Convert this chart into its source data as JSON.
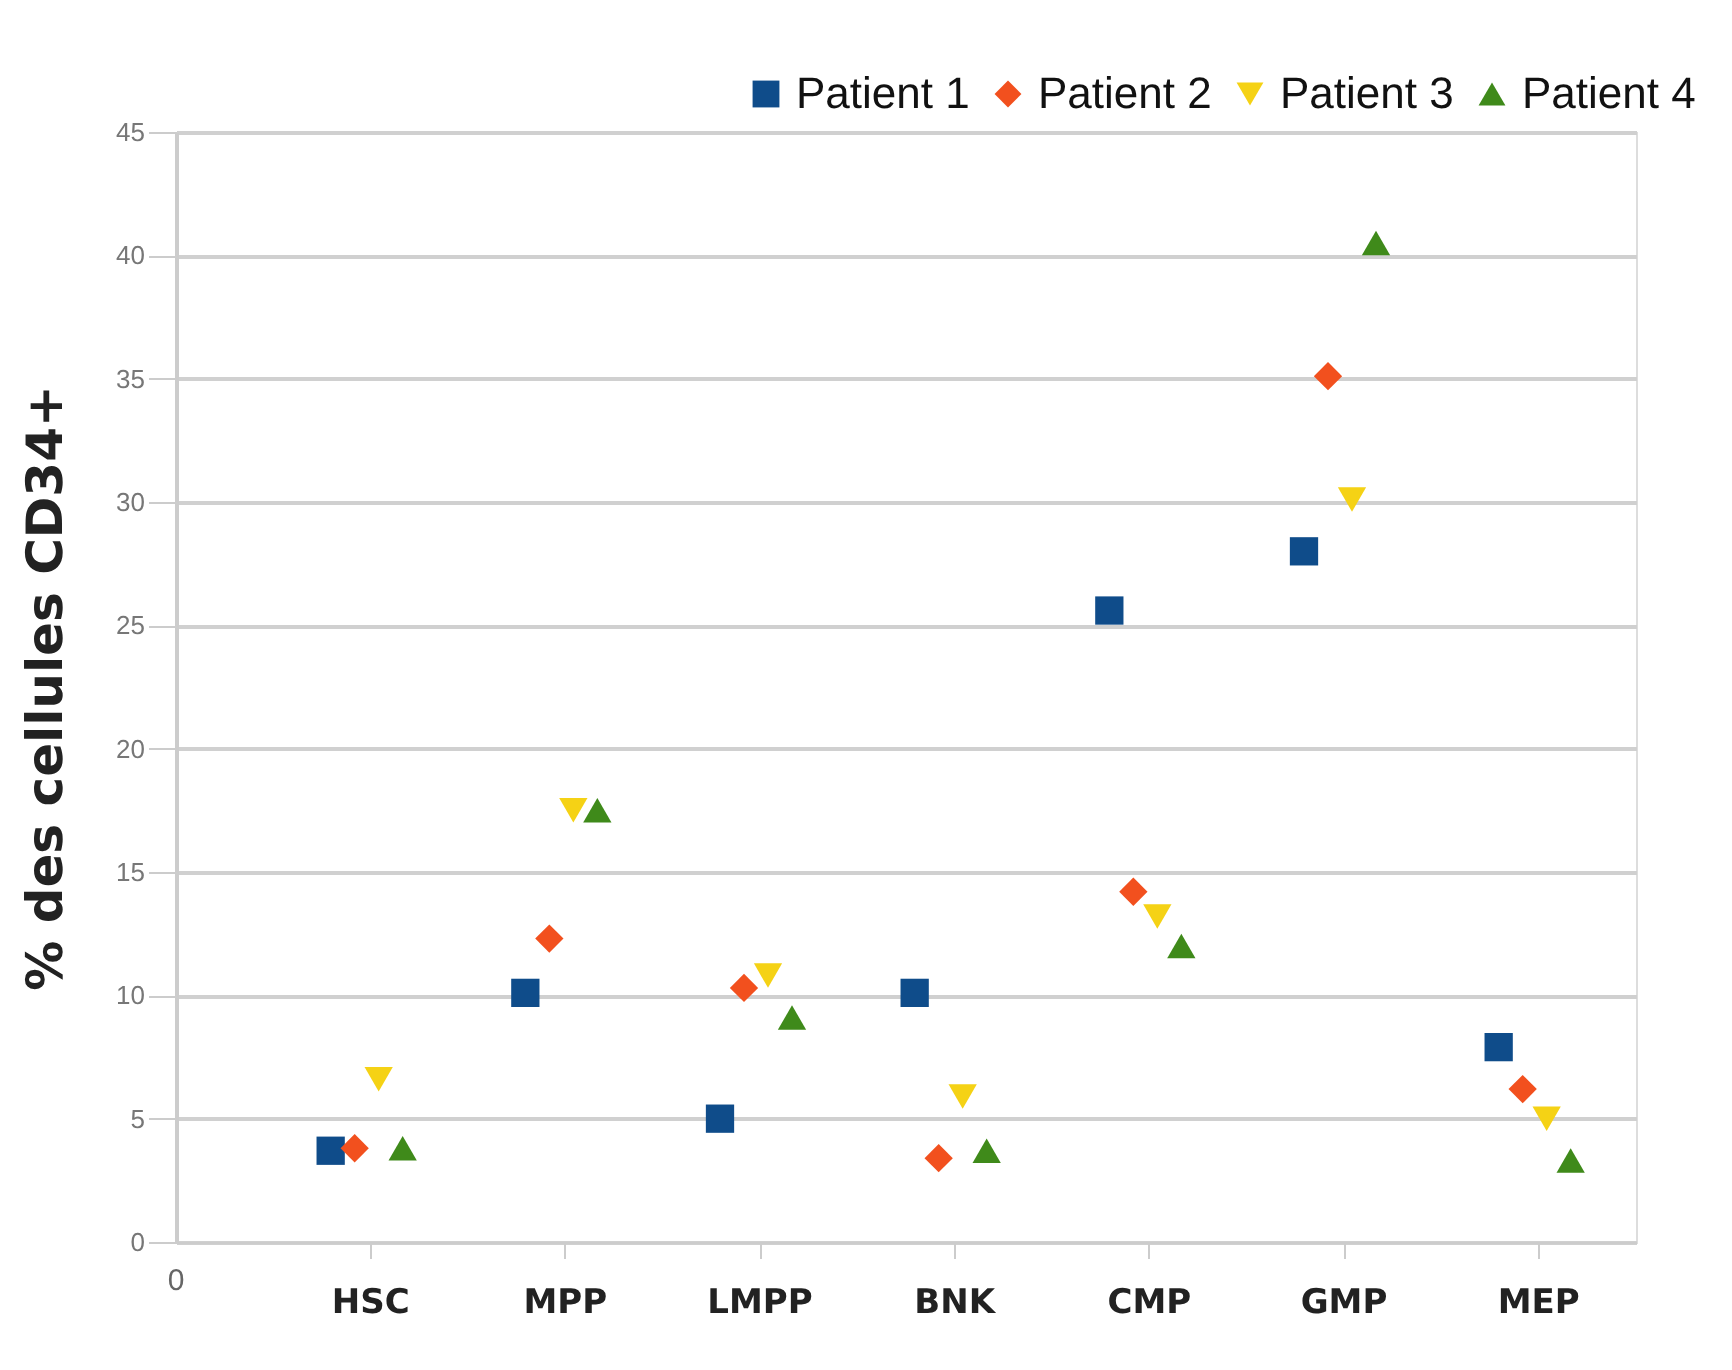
{
  "chart_data": {
    "type": "scatter",
    "ylabel": "% des cellules CD34+",
    "categories": [
      "HSC",
      "MPP",
      "LMPP",
      "BNK",
      "CMP",
      "GMP",
      "MEP"
    ],
    "annotations": [
      "0"
    ],
    "ylim": [
      0,
      45
    ],
    "yticks": [
      0,
      5,
      10,
      15,
      20,
      25,
      30,
      35,
      40,
      45
    ],
    "grid": "y",
    "legend": "top right",
    "series": [
      {
        "name": "Patient 1",
        "color": "#0f4c8a",
        "marker": "square",
        "values": [
          3.7,
          10.1,
          5.0,
          10.1,
          25.6,
          28.0,
          7.9
        ]
      },
      {
        "name": "Patient 2",
        "color": "#f2501e",
        "marker": "diamond",
        "values": [
          3.8,
          12.3,
          10.3,
          3.4,
          14.2,
          35.1,
          6.2
        ]
      },
      {
        "name": "Patient 3",
        "color": "#f5d215",
        "marker": "triangle-down",
        "values": [
          6.6,
          17.5,
          10.8,
          5.9,
          13.2,
          30.1,
          5.0
        ]
      },
      {
        "name": "Patient 4",
        "color": "#3f8a1a",
        "marker": "triangle",
        "values": [
          3.8,
          17.5,
          9.1,
          3.7,
          12.0,
          40.5,
          3.3
        ]
      }
    ]
  }
}
